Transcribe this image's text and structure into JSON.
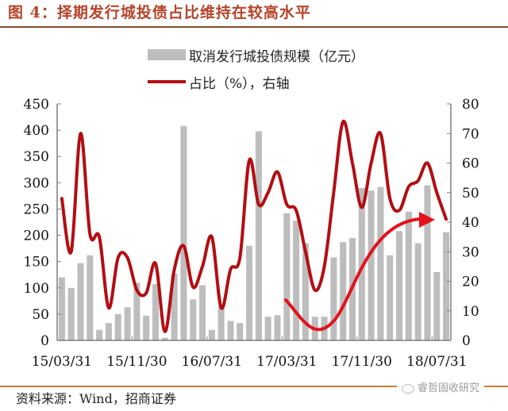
{
  "figure": {
    "title": "图 4：择期发行城投债占比维持在较高水平",
    "source": "资料来源：Wind，招商证券",
    "watermark": "睿哲固收研究"
  },
  "legend": {
    "bar_label": "取消发行城投债规模（亿元）",
    "line_label": "占比（%），右轴"
  },
  "colors": {
    "bar": "#bdbdbd",
    "line": "#b20e13",
    "arrow": "#e3121b",
    "title": "#b5442a",
    "axis": "#7f7f7f"
  },
  "chart_data": {
    "type": "bar+line",
    "title": "图 4：择期发行城投债占比维持在较高水平",
    "xlabel": "",
    "ylabel": "取消发行城投债规模（亿元）",
    "y2label": "占比（%）",
    "ylim": [
      0,
      450
    ],
    "y2lim": [
      0,
      80
    ],
    "yticks": [
      0,
      50,
      100,
      150,
      200,
      250,
      300,
      350,
      400,
      450
    ],
    "y2ticks": [
      0,
      10,
      20,
      30,
      40,
      50,
      60,
      70,
      80
    ],
    "xtick_labels": [
      "15/03/31",
      "15/11/30",
      "16/07/31",
      "17/03/31",
      "17/11/30",
      "18/07/31"
    ],
    "grid": false,
    "legend_position": "top",
    "series": [
      {
        "name": "取消发行城投债规模（亿元）",
        "type": "bar",
        "axis": "left",
        "values": [
          120,
          100,
          147,
          162,
          20,
          33,
          50,
          63,
          110,
          47,
          107,
          5,
          127,
          408,
          78,
          105,
          20,
          65,
          37,
          33,
          180,
          398,
          45,
          48,
          242,
          228,
          185,
          45,
          45,
          158,
          187,
          195,
          290,
          285,
          292,
          162,
          208,
          245,
          185,
          295,
          130,
          206
        ]
      },
      {
        "name": "占比（%），右轴",
        "type": "line",
        "axis": "right",
        "values": [
          48,
          30,
          70,
          36,
          35,
          11,
          28,
          28,
          17,
          16,
          26,
          3,
          24,
          32,
          18,
          25,
          35,
          11,
          24,
          28,
          61,
          46,
          50,
          57,
          46,
          44,
          30,
          17,
          25,
          50,
          74,
          60,
          45,
          60,
          70,
          48,
          44,
          52,
          54,
          60,
          50,
          41
        ]
      }
    ],
    "annotations": [
      {
        "type": "curved-arrow",
        "description": "Red arrow rising from the 2017 trough towards ~40% level, indicating share stays high"
      }
    ]
  }
}
